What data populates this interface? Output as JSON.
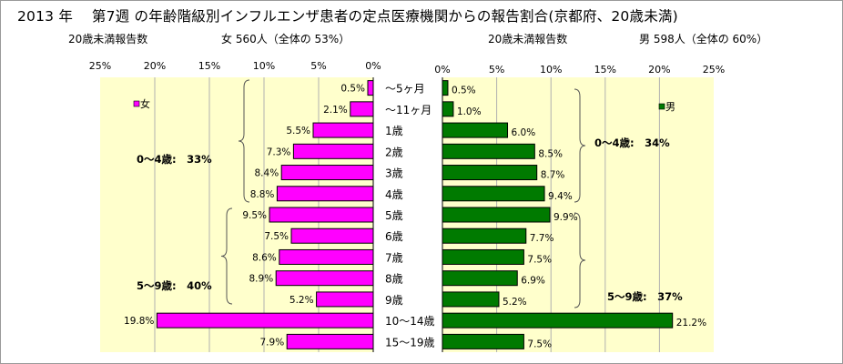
{
  "title": "2013 年　 第7週 の年齢階級別インフルエンザ患者の定点医療機関からの報告割合(京都府、20歳未満)",
  "headers": {
    "left_label": "20歳未満報告数",
    "left_info": "女 560人（全体の 53%）",
    "right_label": "20歳未満報告数",
    "right_info": "男 598人（全体の 60%）"
  },
  "colors": {
    "female": "#ff00ff",
    "male": "#007a00",
    "panel_bg": "#ffffcc",
    "grid": "#b0b0b0"
  },
  "chart_data": {
    "type": "bar",
    "orientation": "horizontal",
    "layout": "population-pyramid",
    "categories": [
      "～5ヶ月",
      "～11ヶ月",
      "1歳",
      "2歳",
      "3歳",
      "4歳",
      "5歳",
      "6歳",
      "7歳",
      "8歳",
      "9歳",
      "10～14歳",
      "15～19歳"
    ],
    "series": [
      {
        "name": "女",
        "side": "left",
        "values": [
          0.5,
          2.1,
          5.5,
          7.3,
          8.4,
          8.8,
          9.5,
          7.5,
          8.6,
          8.9,
          5.2,
          19.8,
          7.9
        ],
        "labels": [
          "0.5%",
          "2.1%",
          "5.5%",
          "7.3%",
          "8.4%",
          "8.8%",
          "9.5%",
          "7.5%",
          "8.6%",
          "8.9%",
          "5.2%",
          "19.8%",
          "7.9%"
        ]
      },
      {
        "name": "男",
        "side": "right",
        "values": [
          0.5,
          1.0,
          6.0,
          8.5,
          8.7,
          9.4,
          9.9,
          7.7,
          7.5,
          6.9,
          5.2,
          21.2,
          7.5
        ],
        "labels": [
          "0.5%",
          "1.0%",
          "6.0%",
          "8.5%",
          "8.7%",
          "9.4%",
          "9.9%",
          "7.7%",
          "7.5%",
          "6.9%",
          "5.2%",
          "21.2%",
          "7.5%"
        ]
      }
    ],
    "xlim": [
      0,
      25
    ],
    "left_ticks": [
      "25%",
      "20%",
      "15%",
      "10%",
      "5%",
      "0%"
    ],
    "right_ticks": [
      "0%",
      "5%",
      "10%",
      "15%",
      "20%",
      "25%"
    ],
    "annotations": {
      "female_0_4": "0～4歳:　33%",
      "female_5_9": "5～9歳:　40%",
      "male_0_4": "0～4歳:　34%",
      "male_5_9": "5～9歳:　37%"
    },
    "legend": {
      "female": "女",
      "male": "男"
    },
    "grid": true
  }
}
